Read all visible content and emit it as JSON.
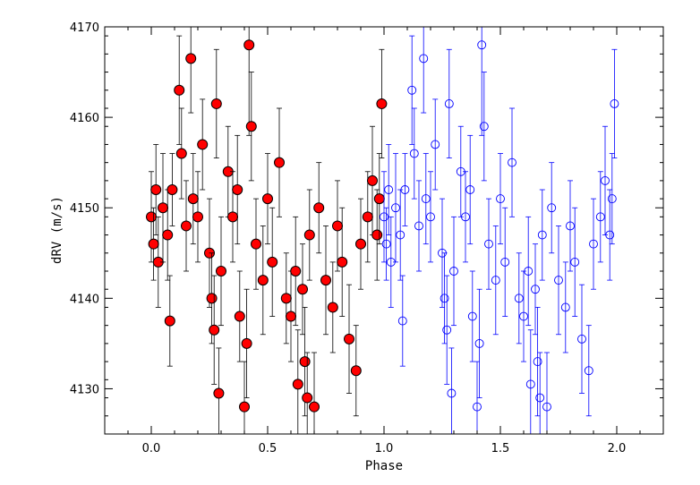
{
  "chart_data": {
    "type": "scatter",
    "title": "",
    "xlabel": "Phase",
    "ylabel": "dRV (m/s)",
    "xlim": [
      -0.2,
      2.2
    ],
    "ylim": [
      4125,
      4170
    ],
    "x_ticks": [
      0.0,
      0.5,
      1.0,
      1.5,
      2.0
    ],
    "x_tick_labels": [
      "0.0",
      "0.5",
      "1.0",
      "1.5",
      "2.0"
    ],
    "y_ticks": [
      4130,
      4140,
      4150,
      4160,
      4170
    ],
    "y_tick_labels": [
      "4130",
      "4140",
      "4150",
      "4160",
      "4170"
    ],
    "grid": false,
    "legend": "none",
    "series": [
      {
        "marker": "filled-circle",
        "color": "#ff0000",
        "edge_color": "#000000",
        "errorbar_color": "#000000",
        "phase_range": [
          0,
          1
        ],
        "x": [
          0.0,
          0.01,
          0.02,
          0.03,
          0.05,
          0.07,
          0.08,
          0.09,
          0.12,
          0.13,
          0.15,
          0.17,
          0.18,
          0.2,
          0.22,
          0.25,
          0.26,
          0.27,
          0.28,
          0.29,
          0.3,
          0.33,
          0.35,
          0.37,
          0.38,
          0.4,
          0.41,
          0.42,
          0.43,
          0.45,
          0.48,
          0.5,
          0.52,
          0.55,
          0.58,
          0.6,
          0.62,
          0.63,
          0.65,
          0.66,
          0.67,
          0.68,
          0.7,
          0.72,
          0.75,
          0.78,
          0.8,
          0.82,
          0.85,
          0.88,
          0.9,
          0.93,
          0.95,
          0.97,
          0.98,
          0.99
        ],
        "y": [
          4149,
          4146,
          4152,
          4144,
          4150,
          4147,
          4137.5,
          4152,
          4163,
          4156,
          4148,
          4166.5,
          4151,
          4149,
          4157,
          4145,
          4140,
          4136.5,
          4161.5,
          4129.5,
          4143,
          4154,
          4149,
          4152,
          4138,
          4128,
          4135,
          4168,
          4159,
          4146,
          4142,
          4151,
          4144,
          4155,
          4140,
          4138,
          4143,
          4130.5,
          4141,
          4133,
          4129,
          4147,
          4128,
          4150,
          4142,
          4139,
          4148,
          4144,
          4135.5,
          4132,
          4146,
          4149,
          4153,
          4147,
          4151,
          4161.5
        ],
        "err": [
          5,
          4,
          5,
          5,
          6,
          5,
          5,
          4,
          6,
          5,
          5,
          6,
          5,
          5,
          5,
          6,
          5,
          6,
          6,
          5,
          6,
          5,
          5,
          6,
          5,
          5,
          6,
          10,
          6,
          5,
          6,
          5,
          6,
          6,
          5,
          5,
          6,
          6,
          5,
          6,
          5,
          5,
          6,
          5,
          6,
          5,
          5,
          6,
          6,
          5,
          5,
          5,
          6,
          5,
          5,
          6
        ]
      },
      {
        "marker": "open-circle",
        "color": "#0000ff",
        "edge_color": "#0000ff",
        "errorbar_color": "#0000ff",
        "phase_range": [
          1,
          2
        ],
        "x": [
          1.0,
          1.01,
          1.02,
          1.03,
          1.05,
          1.07,
          1.08,
          1.09,
          1.12,
          1.13,
          1.15,
          1.17,
          1.18,
          1.2,
          1.22,
          1.25,
          1.26,
          1.27,
          1.28,
          1.29,
          1.3,
          1.33,
          1.35,
          1.37,
          1.38,
          1.4,
          1.41,
          1.42,
          1.43,
          1.45,
          1.48,
          1.5,
          1.52,
          1.55,
          1.58,
          1.6,
          1.62,
          1.63,
          1.65,
          1.66,
          1.67,
          1.68,
          1.7,
          1.72,
          1.75,
          1.78,
          1.8,
          1.82,
          1.85,
          1.88,
          1.9,
          1.93,
          1.95,
          1.97,
          1.98,
          1.99
        ],
        "y": [
          4149,
          4146,
          4152,
          4144,
          4150,
          4147,
          4137.5,
          4152,
          4163,
          4156,
          4148,
          4166.5,
          4151,
          4149,
          4157,
          4145,
          4140,
          4136.5,
          4161.5,
          4129.5,
          4143,
          4154,
          4149,
          4152,
          4138,
          4128,
          4135,
          4168,
          4159,
          4146,
          4142,
          4151,
          4144,
          4155,
          4140,
          4138,
          4143,
          4130.5,
          4141,
          4133,
          4129,
          4147,
          4128,
          4150,
          4142,
          4139,
          4148,
          4144,
          4135.5,
          4132,
          4146,
          4149,
          4153,
          4147,
          4151,
          4161.5
        ],
        "err": [
          5,
          4,
          5,
          5,
          6,
          5,
          5,
          4,
          6,
          5,
          5,
          6,
          5,
          5,
          5,
          6,
          5,
          6,
          6,
          5,
          6,
          5,
          5,
          6,
          5,
          5,
          6,
          10,
          6,
          5,
          6,
          5,
          6,
          6,
          5,
          5,
          6,
          6,
          5,
          6,
          5,
          5,
          6,
          5,
          6,
          5,
          5,
          6,
          6,
          5,
          5,
          5,
          6,
          5,
          5,
          6
        ]
      }
    ]
  }
}
